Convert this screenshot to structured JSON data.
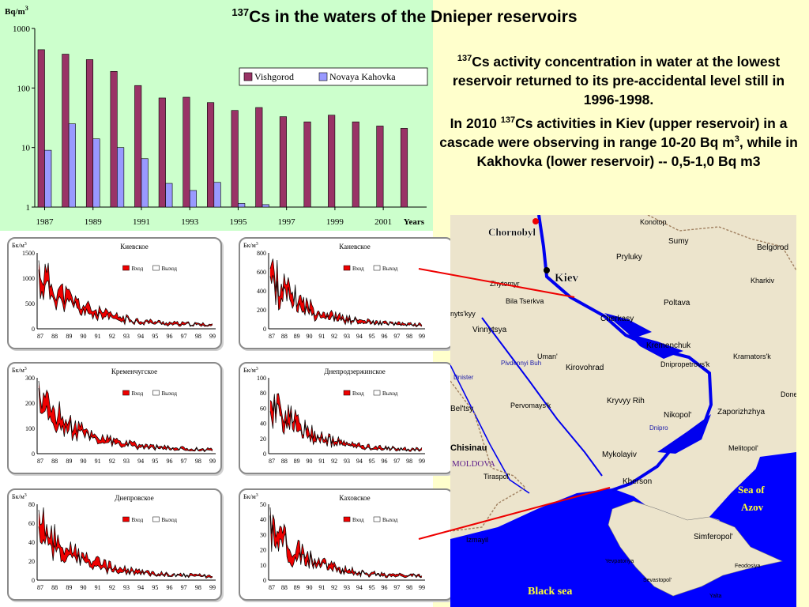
{
  "title": {
    "sup": "137",
    "text": "Cs in the waters of the  Dnieper reservoirs"
  },
  "info": {
    "p1_sup": "137",
    "p1_text": "Cs activity concentration in water at the lowest reservoir returned to its pre-accidental level still in 1996-1998.",
    "p2_pre": "In 2010 ",
    "p2_sup": "137",
    "p2_mid": "Cs activities in Kiev (upper reservoir) in a cascade were observing in range 10-20 Bq m",
    "p2_sup2": "3",
    "p2_end": ", while in Kakhovka (lower reservoir) -- 0,5-1,0 Bq m3"
  },
  "colors": {
    "vishgorod": "#993366",
    "kahovka": "#9999ff",
    "mini_fill": "#ee0000",
    "water": "#0000ee",
    "land": "#ece4cc",
    "sea": "#0000ff"
  },
  "chart_data": [
    {
      "type": "bar",
      "scale": "log",
      "ylabel": "Bq/m3",
      "ylabel_base": "Bq/m",
      "ylabel_sup": "3",
      "xlabel": "Years",
      "ylim": [
        1,
        1000
      ],
      "yticks": [
        "1000",
        "100",
        "10",
        "1"
      ],
      "legend_position": "top-right",
      "categories": [
        "1987",
        "1988",
        "1989",
        "1990",
        "1991",
        "1992",
        "1993",
        "1994",
        "1995",
        "1996",
        "1997",
        "1998",
        "1999",
        "2000",
        "2001",
        "2002"
      ],
      "xtick_labels": [
        "1987",
        "1989",
        "1991",
        "1993",
        "1995",
        "1997",
        "1999",
        "2001"
      ],
      "series": [
        {
          "name": "Vishgorod",
          "values": [
            440,
            370,
            300,
            190,
            110,
            68,
            70,
            57,
            42,
            47,
            33,
            27,
            35,
            27,
            23,
            21
          ]
        },
        {
          "name": "Novaya Kahovka",
          "values": [
            9,
            25,
            14,
            10,
            6.5,
            2.5,
            1.9,
            2.6,
            1.15,
            1.1,
            null,
            null,
            null,
            null,
            null,
            null
          ]
        }
      ]
    },
    {
      "type": "area",
      "title": "Киевское",
      "ylabel": "Бк/м3",
      "ylim": [
        0,
        1600
      ],
      "yticks": [
        "1500",
        "1000",
        "500",
        "0"
      ],
      "xticks": [
        "87",
        "88",
        "89",
        "90",
        "91",
        "92",
        "93",
        "94",
        "95",
        "96",
        "97",
        "98",
        "99"
      ],
      "legend": [
        "Вход",
        "Выход"
      ]
    },
    {
      "type": "area",
      "title": "Каневское",
      "ylabel": "Бк/м3",
      "ylim": [
        0,
        800
      ],
      "yticks": [
        "800",
        "600",
        "400",
        "200",
        "0"
      ],
      "xticks": [
        "87",
        "88",
        "89",
        "90",
        "91",
        "92",
        "93",
        "94",
        "95",
        "96",
        "97",
        "98",
        "99"
      ],
      "legend": [
        "Вход",
        "Выход"
      ]
    },
    {
      "type": "area",
      "title": "Кременчугское",
      "ylabel": "Бк/м3",
      "ylim": [
        0,
        300
      ],
      "yticks": [
        "300",
        "200",
        "100",
        "0"
      ],
      "xticks": [
        "87",
        "88",
        "89",
        "90",
        "91",
        "92",
        "93",
        "94",
        "95",
        "96",
        "97",
        "98",
        "99"
      ],
      "legend": [
        "Вход",
        "Выход"
      ]
    },
    {
      "type": "area",
      "title": "Днепродзержинское",
      "ylabel": "Бк/м3",
      "ylim": [
        0,
        100
      ],
      "yticks": [
        "100",
        "80",
        "60",
        "40",
        "20",
        "0"
      ],
      "xticks": [
        "87",
        "88",
        "89",
        "90",
        "91",
        "92",
        "93",
        "94",
        "95",
        "96",
        "97",
        "98",
        "99"
      ],
      "legend": [
        "Вход",
        "Выход"
      ]
    },
    {
      "type": "area",
      "title": "Днепровское",
      "ylabel": "Бк/м3",
      "ylim": [
        0,
        80
      ],
      "yticks": [
        "80",
        "60",
        "40",
        "20",
        "0"
      ],
      "xticks": [
        "87",
        "88",
        "89",
        "90",
        "91",
        "92",
        "93",
        "94",
        "95",
        "96",
        "97",
        "98",
        "99"
      ],
      "legend": [
        "Вход",
        "Выход"
      ]
    },
    {
      "type": "area",
      "title": "Каховское",
      "ylabel": "Бк/м3",
      "ylim": [
        0,
        50
      ],
      "yticks": [
        "50",
        "40",
        "30",
        "20",
        "10",
        "0"
      ],
      "xticks": [
        "87",
        "88",
        "89",
        "90",
        "91",
        "92",
        "93",
        "94",
        "95",
        "96",
        "97",
        "98",
        "99"
      ],
      "legend": [
        "Вход",
        "Выход"
      ]
    }
  ],
  "map": {
    "labels": [
      {
        "name": "Chornobyl",
        "kind": "big"
      },
      {
        "name": "Kiev",
        "kind": "big"
      },
      {
        "name": "Konotop",
        "kind": "city"
      },
      {
        "name": "Sumy",
        "kind": "city"
      },
      {
        "name": "Belgorod",
        "kind": "city"
      },
      {
        "name": "Pryluky",
        "kind": "city"
      },
      {
        "name": "Kharkiv",
        "kind": "city"
      },
      {
        "name": "Zhytomyr",
        "kind": "city"
      },
      {
        "name": "Bila Tserkva",
        "kind": "city"
      },
      {
        "name": "Poltava",
        "kind": "city"
      },
      {
        "name": "nyts'kyy",
        "kind": "city"
      },
      {
        "name": "Cherkasy",
        "kind": "city"
      },
      {
        "name": "Vinnytsya",
        "kind": "city"
      },
      {
        "name": "Kremenchuk",
        "kind": "city"
      },
      {
        "name": "Kramators'k",
        "kind": "city"
      },
      {
        "name": "Uman'",
        "kind": "city"
      },
      {
        "name": "Dnipropetrovs'k",
        "kind": "city"
      },
      {
        "name": "Kirovohrad",
        "kind": "city"
      },
      {
        "name": "Pivdennyi Buh",
        "kind": "river"
      },
      {
        "name": "Dnister",
        "kind": "river"
      },
      {
        "name": "Pervomays'k",
        "kind": "city"
      },
      {
        "name": "Kryvyy Rih",
        "kind": "city"
      },
      {
        "name": "Zaporizhzhya",
        "kind": "city"
      },
      {
        "name": "Done",
        "kind": "city"
      },
      {
        "name": "Bel'tsy",
        "kind": "city"
      },
      {
        "name": "Nikopol'",
        "kind": "city"
      },
      {
        "name": "Dnipro",
        "kind": "river"
      },
      {
        "name": "Chisinau",
        "kind": "city"
      },
      {
        "name": "MOLDOVA",
        "kind": "country"
      },
      {
        "name": "Mykolayiv",
        "kind": "city"
      },
      {
        "name": "Melitopol'",
        "kind": "city"
      },
      {
        "name": "Tiraspol'",
        "kind": "city"
      },
      {
        "name": "Kherson",
        "kind": "city"
      },
      {
        "name": "Sea of",
        "kind": "sea"
      },
      {
        "name": "Azov",
        "kind": "sea"
      },
      {
        "name": "Izmayil",
        "kind": "city"
      },
      {
        "name": "Simferopol'",
        "kind": "city"
      },
      {
        "name": "Yevpatoriya",
        "kind": "city"
      },
      {
        "name": "Sevastopol'",
        "kind": "city"
      },
      {
        "name": "Feodosiya",
        "kind": "city"
      },
      {
        "name": "Yalta",
        "kind": "city"
      },
      {
        "name": "Black sea",
        "kind": "sea"
      }
    ]
  }
}
